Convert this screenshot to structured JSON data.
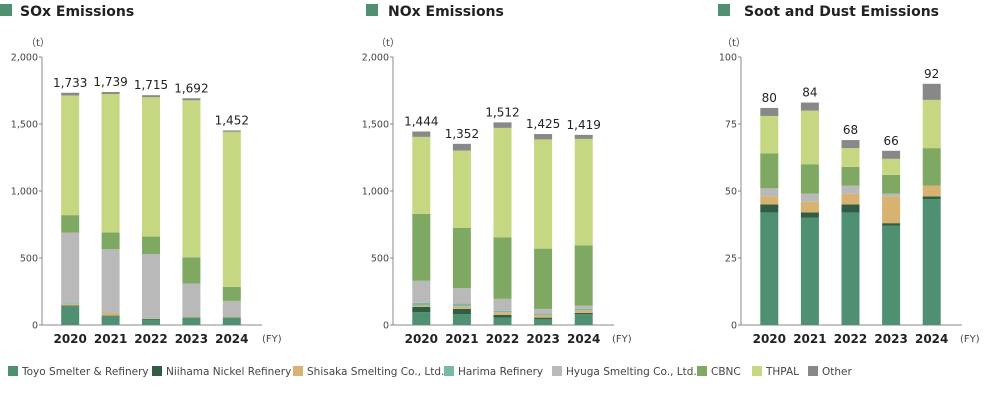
{
  "units_label": "（t）",
  "fy_label": "(FY)",
  "colors": {
    "Toyo Smelter & Refinery": "#4f8f72",
    "Niihama Nickel Refinery": "#2f5e45",
    "Shisaka Smelting Co., Ltd.": "#d7b270",
    "Harima Refinery": "#79b8a9",
    "Hyuga Smelting Co., Ltd.": "#b9b9b9",
    "CBNC": "#7fa862",
    "THPAL": "#c5d781",
    "Other": "#888888"
  },
  "legend": [
    "Toyo Smelter & Refinery",
    "Niihama Nickel Refinery",
    "Shisaka Smelting Co., Ltd.",
    "Harima Refinery",
    "Hyuga Smelting Co., Ltd.",
    "CBNC",
    "THPAL",
    "Other"
  ],
  "chart_data": [
    {
      "type": "bar",
      "stacked": true,
      "title": "SOx Emissions",
      "ylabel": "（t）",
      "xlabel": "(FY)",
      "ylim": [
        0,
        2000
      ],
      "yticks": [
        "0",
        "500",
        "1,000",
        "1,500",
        "2,000"
      ],
      "ytick_values": [
        0,
        500,
        1000,
        1500,
        2000
      ],
      "categories": [
        "2020",
        "2021",
        "2022",
        "2023",
        "2024"
      ],
      "totals": [
        "1,733",
        "1,739",
        "1,715",
        "1,692",
        "1,452"
      ],
      "series": [
        {
          "name": "Toyo Smelter & Refinery",
          "values": [
            140,
            65,
            40,
            50,
            50
          ]
        },
        {
          "name": "Niihama Nickel Refinery",
          "values": [
            5,
            5,
            5,
            5,
            5
          ]
        },
        {
          "name": "Shisaka Smelting Co., Ltd.",
          "values": [
            10,
            20,
            5,
            5,
            5
          ]
        },
        {
          "name": "Harima Refinery",
          "values": [
            5,
            5,
            5,
            5,
            5
          ]
        },
        {
          "name": "Hyuga Smelting Co., Ltd.",
          "values": [
            530,
            470,
            475,
            245,
            115
          ]
        },
        {
          "name": "CBNC",
          "values": [
            130,
            125,
            130,
            195,
            105
          ]
        },
        {
          "name": "THPAL",
          "values": [
            893,
            1034,
            1040,
            1172,
            1157
          ]
        },
        {
          "name": "Other",
          "values": [
            20,
            15,
            15,
            15,
            10
          ]
        }
      ]
    },
    {
      "type": "bar",
      "stacked": true,
      "title": "NOx Emissions",
      "ylabel": "（t）",
      "xlabel": "(FY)",
      "ylim": [
        0,
        2000
      ],
      "yticks": [
        "0",
        "500",
        "1,000",
        "1,500",
        "2,000"
      ],
      "ytick_values": [
        0,
        500,
        1000,
        1500,
        2000
      ],
      "categories": [
        "2020",
        "2021",
        "2022",
        "2023",
        "2024"
      ],
      "totals": [
        "1,444",
        "1,352",
        "1,512",
        "1,425",
        "1,419"
      ],
      "series": [
        {
          "name": "Toyo Smelter & Refinery",
          "values": [
            95,
            80,
            55,
            45,
            80
          ]
        },
        {
          "name": "Niihama Nickel Refinery",
          "values": [
            40,
            40,
            20,
            10,
            10
          ]
        },
        {
          "name": "Shisaka Smelting Co., Ltd.",
          "values": [
            10,
            20,
            20,
            20,
            20
          ]
        },
        {
          "name": "Harima Refinery",
          "values": [
            20,
            20,
            10,
            10,
            10
          ]
        },
        {
          "name": "Hyuga Smelting Co., Ltd.",
          "values": [
            165,
            115,
            90,
            35,
            25
          ]
        },
        {
          "name": "CBNC",
          "values": [
            500,
            450,
            460,
            450,
            450
          ]
        },
        {
          "name": "THPAL",
          "values": [
            574,
            577,
            816,
            815,
            794
          ]
        },
        {
          "name": "Other",
          "values": [
            40,
            50,
            41,
            40,
            30
          ]
        }
      ]
    },
    {
      "type": "bar",
      "stacked": true,
      "title": "Soot and Dust Emissions",
      "ylabel": "（t）",
      "xlabel": "(FY)",
      "ylim": [
        0,
        100
      ],
      "yticks": [
        "0",
        "25",
        "50",
        "75",
        "100"
      ],
      "ytick_values": [
        0,
        25,
        50,
        75,
        100
      ],
      "categories": [
        "2020",
        "2021",
        "2022",
        "2023",
        "2024"
      ],
      "totals": [
        "80",
        "84",
        "68",
        "66",
        "92"
      ],
      "series": [
        {
          "name": "Toyo Smelter & Refinery",
          "values": [
            42,
            40,
            42,
            37,
            47
          ]
        },
        {
          "name": "Niihama Nickel Refinery",
          "values": [
            3,
            2,
            3,
            1,
            1
          ]
        },
        {
          "name": "Shisaka Smelting Co., Ltd.",
          "values": [
            3,
            4,
            4,
            10,
            4
          ]
        },
        {
          "name": "Harima Refinery",
          "values": [
            0,
            0,
            0,
            0,
            0
          ]
        },
        {
          "name": "Hyuga Smelting Co., Ltd.",
          "values": [
            3,
            3,
            3,
            1,
            0
          ]
        },
        {
          "name": "CBNC",
          "values": [
            13,
            11,
            7,
            7,
            14
          ]
        },
        {
          "name": "THPAL",
          "values": [
            14,
            20,
            7,
            6,
            18
          ]
        },
        {
          "name": "Other",
          "values": [
            3,
            3,
            3,
            3,
            6
          ]
        }
      ]
    }
  ]
}
